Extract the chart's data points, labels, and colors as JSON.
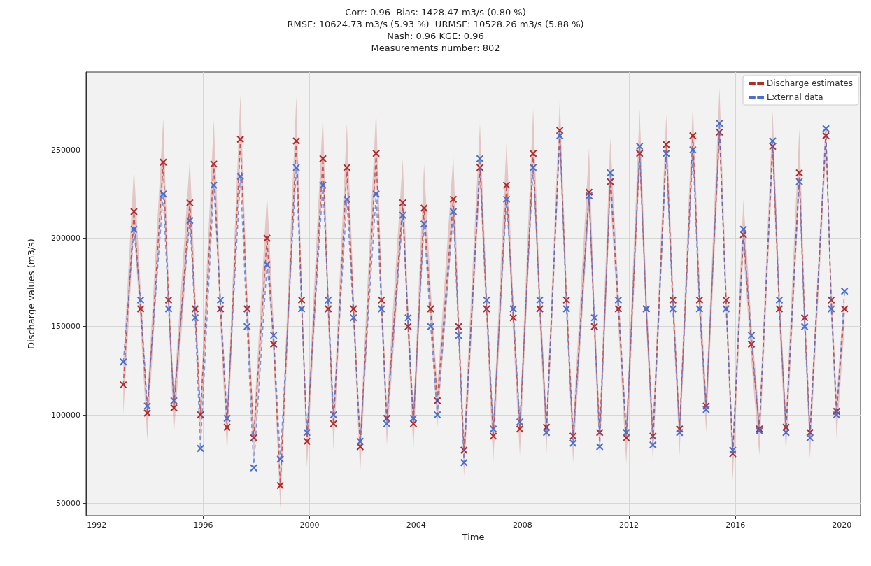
{
  "chart_data": {
    "type": "line",
    "title": "Corr: 0.96  Bias: 1428.47 m3/s (0.80 %)\nRMSE: 10624.73 m3/s (5.93 %)  URMSE: 10528.26 m3/s (5.88 %)\nNash: 0.96 KGE: 0.96\nMeasurements number: 802",
    "xlabel": "Time",
    "ylabel": "Discharge values (m3/s)",
    "x": [
      1993.0,
      1993.4,
      1993.65,
      1993.9,
      1994.5,
      1994.7,
      1994.9,
      1995.5,
      1995.7,
      1995.9,
      1996.4,
      1996.65,
      1996.9,
      1997.4,
      1997.65,
      1997.9,
      1998.4,
      1998.65,
      1998.9,
      1999.5,
      1999.7,
      1999.9,
      2000.5,
      2000.7,
      2000.9,
      2001.4,
      2001.65,
      2001.9,
      2002.5,
      2002.7,
      2002.9,
      2003.5,
      2003.7,
      2003.9,
      2004.3,
      2004.55,
      2004.8,
      2005.4,
      2005.6,
      2005.8,
      2006.4,
      2006.65,
      2006.9,
      2007.4,
      2007.65,
      2007.9,
      2008.4,
      2008.65,
      2008.9,
      2009.4,
      2009.65,
      2009.9,
      2010.5,
      2010.7,
      2010.9,
      2011.3,
      2011.6,
      2011.9,
      2012.4,
      2012.65,
      2012.9,
      2013.4,
      2013.65,
      2013.9,
      2014.4,
      2014.65,
      2014.9,
      2015.4,
      2015.65,
      2015.9,
      2016.3,
      2016.6,
      2016.9,
      2017.4,
      2017.65,
      2017.9,
      2018.4,
      2018.6,
      2018.8,
      2019.4,
      2019.6,
      2019.8,
      2020.1
    ],
    "series": [
      {
        "name": "Discharge estimates",
        "color": "#b22a2a",
        "values": [
          117000,
          215000,
          160000,
          101000,
          243000,
          165000,
          104000,
          220000,
          160000,
          100000,
          242000,
          160000,
          93000,
          256000,
          160000,
          87000,
          200000,
          140000,
          60000,
          255000,
          165000,
          85000,
          245000,
          160000,
          95000,
          240000,
          160000,
          82000,
          248000,
          165000,
          98000,
          220000,
          150000,
          95000,
          217000,
          160000,
          108000,
          222000,
          150000,
          80000,
          240000,
          160000,
          88000,
          230000,
          155000,
          92000,
          248000,
          160000,
          93000,
          261000,
          165000,
          88000,
          226000,
          150000,
          90000,
          232000,
          160000,
          87000,
          248000,
          160000,
          88000,
          253000,
          165000,
          92000,
          258000,
          165000,
          105000,
          260000,
          165000,
          78000,
          202000,
          140000,
          92000,
          252000,
          160000,
          93000,
          237000,
          155000,
          90000,
          258000,
          165000,
          102000,
          160000
        ],
        "upper": [
          130000,
          240000,
          172000,
          109000,
          268000,
          177000,
          112000,
          245000,
          172000,
          108000,
          267000,
          172000,
          101000,
          281000,
          172000,
          95000,
          225000,
          152000,
          68000,
          280000,
          177000,
          93000,
          270000,
          172000,
          103000,
          265000,
          172000,
          90000,
          273000,
          177000,
          106000,
          245000,
          162000,
          103000,
          242000,
          172000,
          116000,
          247000,
          162000,
          88000,
          265000,
          172000,
          96000,
          255000,
          167000,
          100000,
          273000,
          172000,
          101000,
          279000,
          177000,
          96000,
          251000,
          162000,
          98000,
          257000,
          172000,
          95000,
          273000,
          172000,
          96000,
          270000,
          177000,
          100000,
          276000,
          177000,
          113000,
          285000,
          177000,
          86000,
          222000,
          152000,
          100000,
          272000,
          172000,
          101000,
          262000,
          167000,
          98000,
          269000,
          177000,
          110000,
          172000
        ],
        "lower": [
          100000,
          205000,
          150000,
          86000,
          233000,
          155000,
          89000,
          210000,
          150000,
          85000,
          232000,
          150000,
          78000,
          246000,
          150000,
          72000,
          190000,
          130000,
          47000,
          245000,
          155000,
          70000,
          235000,
          150000,
          80000,
          230000,
          150000,
          67000,
          238000,
          155000,
          83000,
          210000,
          140000,
          80000,
          207000,
          150000,
          93000,
          212000,
          140000,
          65000,
          230000,
          150000,
          73000,
          220000,
          145000,
          77000,
          238000,
          150000,
          78000,
          251000,
          155000,
          73000,
          216000,
          140000,
          75000,
          222000,
          150000,
          72000,
          238000,
          150000,
          73000,
          243000,
          155000,
          77000,
          248000,
          155000,
          90000,
          250000,
          155000,
          63000,
          192000,
          130000,
          77000,
          242000,
          150000,
          78000,
          227000,
          145000,
          75000,
          248000,
          155000,
          87000,
          150000
        ]
      },
      {
        "name": "External data",
        "color": "#4a6fd0",
        "values": [
          130000,
          205000,
          165000,
          105000,
          225000,
          160000,
          108000,
          210000,
          155000,
          81000,
          230000,
          165000,
          98000,
          235000,
          150000,
          70000,
          185000,
          145000,
          75000,
          240000,
          160000,
          90000,
          230000,
          165000,
          100000,
          222000,
          155000,
          85000,
          225000,
          160000,
          95000,
          213000,
          155000,
          98000,
          208000,
          150000,
          100000,
          215000,
          145000,
          73000,
          245000,
          165000,
          92000,
          222000,
          160000,
          96000,
          240000,
          165000,
          90000,
          258000,
          160000,
          84000,
          224000,
          155000,
          82000,
          237000,
          165000,
          90000,
          252000,
          160000,
          83000,
          248000,
          160000,
          90000,
          250000,
          160000,
          103000,
          265000,
          160000,
          80000,
          205000,
          145000,
          91000,
          255000,
          165000,
          90000,
          232000,
          150000,
          87000,
          262000,
          160000,
          100000,
          170000
        ]
      }
    ],
    "xlim": [
      1991.6,
      2020.7
    ],
    "xticks": [
      1992,
      1996,
      2000,
      2004,
      2008,
      2012,
      2016,
      2020
    ],
    "ylim": [
      43000,
      294000
    ],
    "yticks": [
      50000,
      100000,
      150000,
      200000,
      250000
    ],
    "grid": true,
    "legend": "top right",
    "marker": "cross",
    "line_style": "dashed"
  }
}
